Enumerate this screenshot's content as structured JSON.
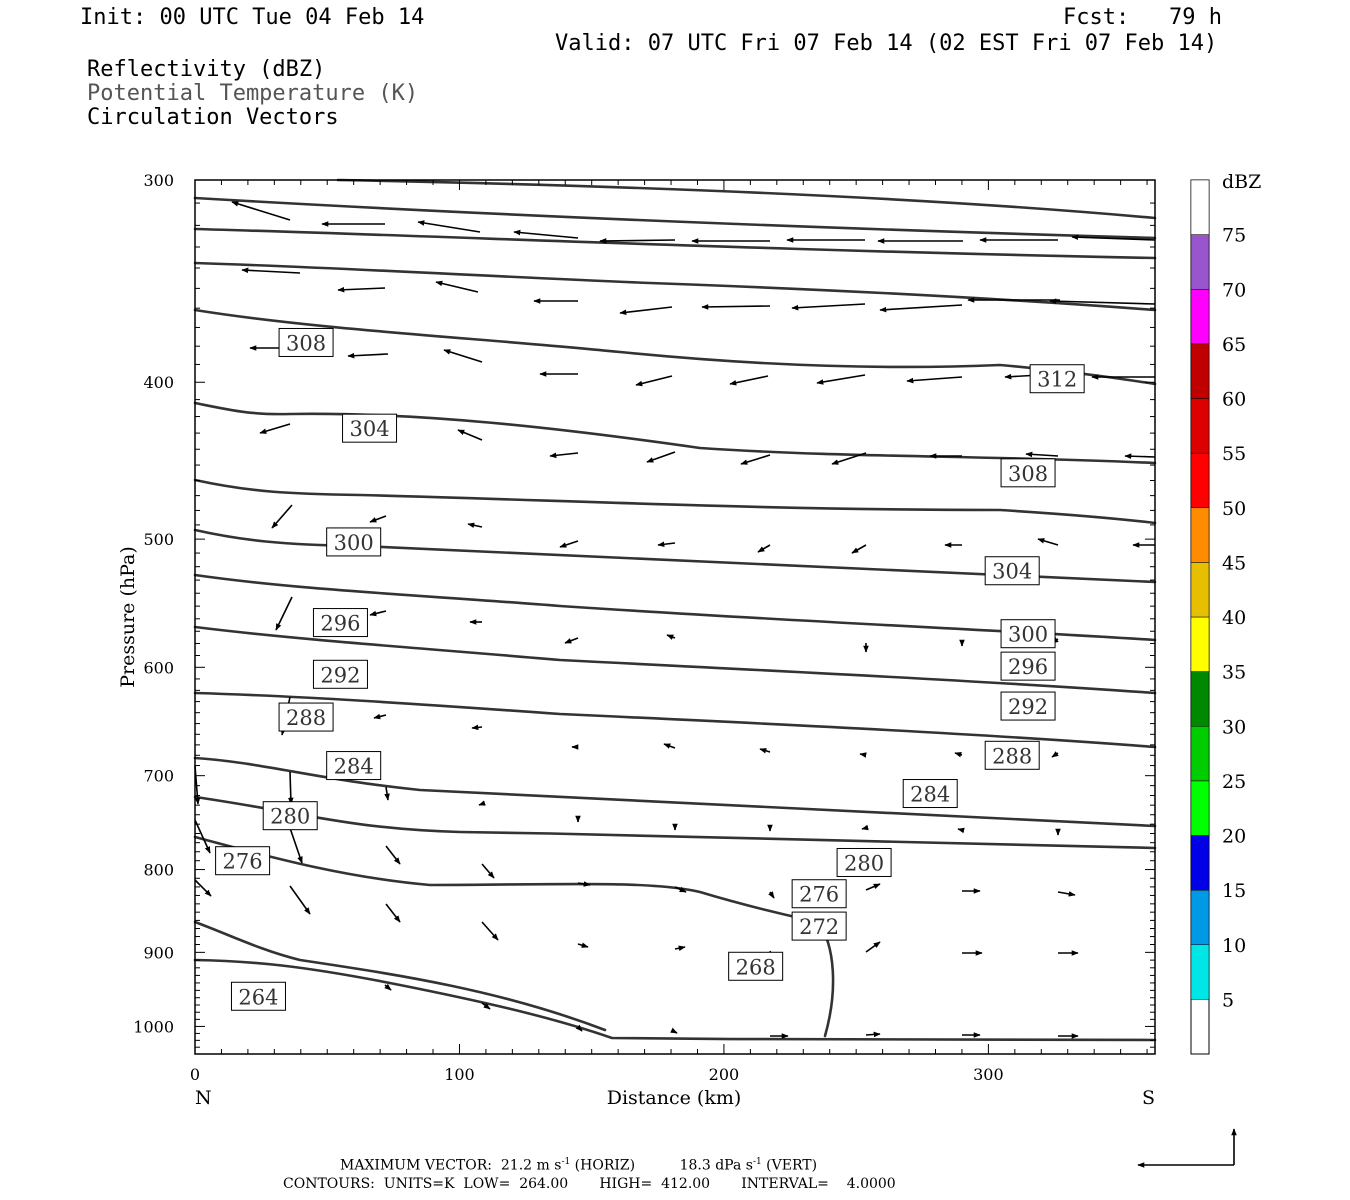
{
  "header": {
    "init": "Init: 00 UTC Tue 04 Feb 14",
    "fcst": "Fcst:   79 h",
    "valid": "Valid: 07 UTC Fri 07 Feb 14 (02 EST Fri 07 Feb 14)",
    "field1": "Reflectivity (dBZ)",
    "field2": "Potential Temperature (K)",
    "field3": "Circulation Vectors"
  },
  "colors": {
    "field2_text": "#555555",
    "contour": "#333333",
    "vector": "#000000"
  },
  "footer": {
    "max_vector_label": "MAXIMUM VECTOR:",
    "max_vector_horiz": "21.2 m s",
    "horiz_suffix": " (HORIZ)",
    "max_vector_vert": "18.3 dPa s",
    "vert_suffix": " (VERT)",
    "exponent": "-1",
    "contours": "CONTOURS:  UNITS=K  LOW=  264.00       HIGH=  412.00       INTERVAL=    4.0000"
  },
  "chart_data": {
    "type": "cross-section",
    "xlabel": "Distance (km)",
    "ylabel": "Pressure (hPa)",
    "xlim": [
      0,
      363
    ],
    "ylim": [
      1040,
      300
    ],
    "y_scale": "log",
    "x_ticks": [
      0,
      100,
      200,
      300
    ],
    "y_ticks": [
      300,
      400,
      500,
      600,
      700,
      800,
      900,
      1000
    ],
    "left_end_label": "N",
    "right_end_label": "S",
    "colorbar": {
      "title": "dBZ",
      "levels": [
        5,
        10,
        15,
        20,
        25,
        30,
        35,
        40,
        45,
        50,
        55,
        60,
        65,
        70,
        75
      ],
      "colors": [
        "#00e6e6",
        "#0099e6",
        "#0000e6",
        "#00ff00",
        "#00cc00",
        "#008800",
        "#ffff00",
        "#e6c000",
        "#ff8c00",
        "#ff0000",
        "#dd0000",
        "#c00000",
        "#ff00ff",
        "#9955cc",
        "#ffffff"
      ]
    },
    "contour_labels": [
      {
        "value": "264",
        "x": 24,
        "p": 958
      },
      {
        "value": "268",
        "x": 212,
        "p": 918
      },
      {
        "value": "272",
        "x": 236,
        "p": 867
      },
      {
        "value": "276",
        "x": 18,
        "p": 790
      },
      {
        "value": "276",
        "x": 236,
        "p": 828
      },
      {
        "value": "280",
        "x": 36,
        "p": 741
      },
      {
        "value": "280",
        "x": 253,
        "p": 792
      },
      {
        "value": "284",
        "x": 60,
        "p": 690
      },
      {
        "value": "284",
        "x": 278,
        "p": 718
      },
      {
        "value": "288",
        "x": 42,
        "p": 644
      },
      {
        "value": "288",
        "x": 309,
        "p": 680
      },
      {
        "value": "292",
        "x": 55,
        "p": 606
      },
      {
        "value": "292",
        "x": 315,
        "p": 634
      },
      {
        "value": "296",
        "x": 55,
        "p": 563
      },
      {
        "value": "296",
        "x": 315,
        "p": 599
      },
      {
        "value": "300",
        "x": 60,
        "p": 502
      },
      {
        "value": "300",
        "x": 315,
        "p": 572
      },
      {
        "value": "304",
        "x": 66,
        "p": 427
      },
      {
        "value": "304",
        "x": 309,
        "p": 523
      },
      {
        "value": "308",
        "x": 42,
        "p": 378
      },
      {
        "value": "308",
        "x": 315,
        "p": 455
      },
      {
        "value": "312",
        "x": 326,
        "p": 398
      }
    ]
  }
}
